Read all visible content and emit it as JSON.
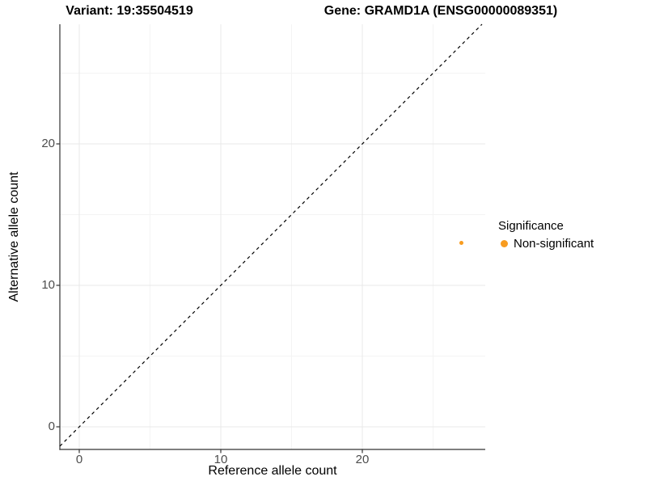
{
  "chart_data": {
    "type": "scatter",
    "titles": [
      "Variant: 19:35504519",
      "Gene: GRAMD1A (ENSG00000089351)"
    ],
    "xlabel": "Reference allele count",
    "ylabel": "Alternative allele count",
    "xlim": [
      -1.4,
      28.7
    ],
    "ylim": [
      -1.5,
      28.5
    ],
    "x_ticks": [
      0,
      10,
      20
    ],
    "y_ticks": [
      0,
      10,
      20
    ],
    "x_minor_ticks": [
      5,
      15,
      25
    ],
    "y_minor_ticks": [
      5,
      15,
      25
    ],
    "grid": true,
    "legend_position": "right",
    "identity_line": {
      "slope": 1,
      "intercept": 0,
      "linetype": "dashed",
      "color": "#000000"
    },
    "series": [
      {
        "name": "Non-significant",
        "color": "#F89C20",
        "point_size": 2.5,
        "points": [
          {
            "x": 27,
            "y": 13
          }
        ]
      }
    ],
    "legend": {
      "title": "Significance",
      "items": [
        {
          "label": "Non-significant",
          "color": "#F89C20"
        }
      ]
    }
  },
  "colors": {
    "background": "#FFFFFF",
    "axis_line": "#333333",
    "tick_mark": "#333333",
    "tick_label": "#4D4D4D",
    "grid_major": "#E9E9E9",
    "grid_minor": "#F4F4F4"
  }
}
